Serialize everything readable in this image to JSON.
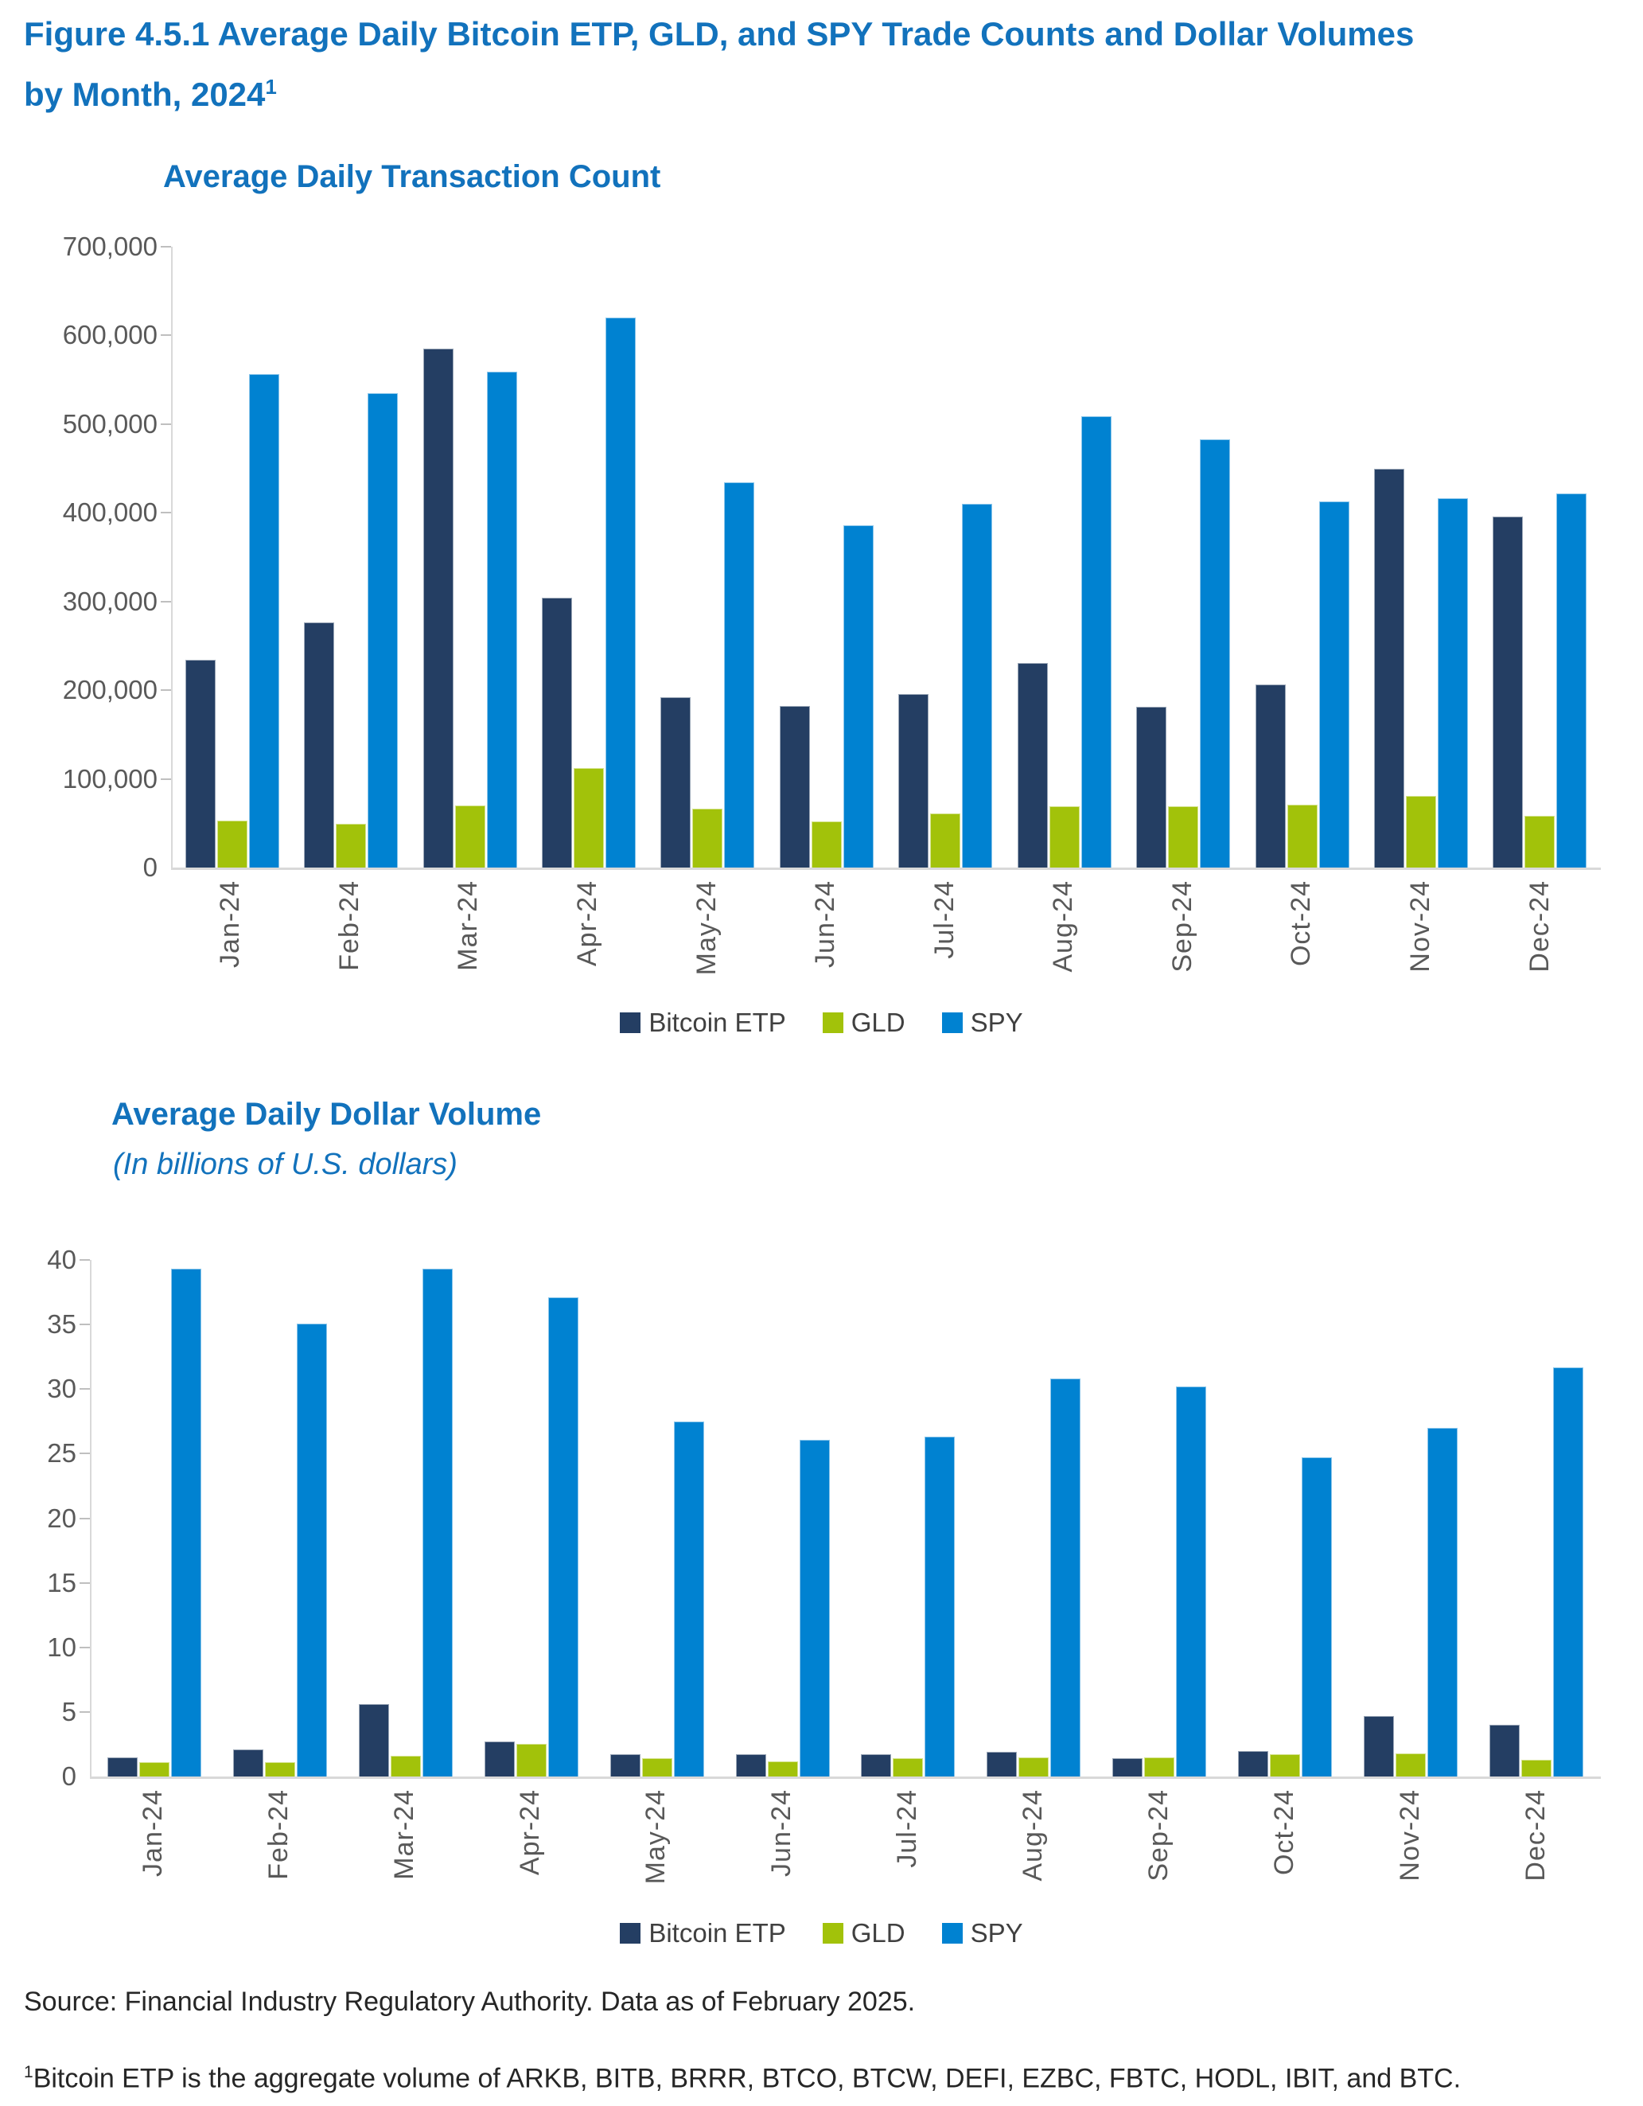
{
  "page": {
    "title_line1": "Figure 4.5.1 Average Daily Bitcoin ETP, GLD, and SPY Trade Counts and Dollar Volumes",
    "title_line2": "by Month, 2024",
    "title_superscript": "1",
    "source": "Source: Financial Industry Regulatory Authority. Data as of February 2025.",
    "footnote_superscript": "1",
    "footnote": "Bitcoin ETP is the aggregate volume of ARKB, BITB, BRRR, BTCO, BTCW, DEFI, EZBC, FBTC, HODL, IBIT, and BTC.",
    "colors": {
      "title_blue": "#1272BC",
      "bitcoin_etp": "#243E63",
      "gld": "#A2C20A",
      "spy": "#0082D1",
      "axis_line": "#D9D9D9",
      "tick_label": "#595959",
      "legend_text": "#404040"
    }
  },
  "chart_data": [
    {
      "type": "bar",
      "title": "Average Daily Transaction Count",
      "subtitle": "",
      "categories": [
        "Jan-24",
        "Feb-24",
        "Mar-24",
        "Apr-24",
        "May-24",
        "Jun-24",
        "Jul-24",
        "Aug-24",
        "Sep-24",
        "Oct-24",
        "Nov-24",
        "Dec-24"
      ],
      "series": [
        {
          "name": "Bitcoin ETP",
          "color": "#243E63",
          "values": [
            234000,
            276000,
            585000,
            304000,
            192000,
            182000,
            196000,
            231000,
            181000,
            206000,
            450000,
            396000
          ]
        },
        {
          "name": "GLD",
          "color": "#A2C20A",
          "values": [
            53000,
            49000,
            70000,
            112000,
            66000,
            52000,
            61000,
            69000,
            69000,
            71000,
            81000,
            58000
          ]
        },
        {
          "name": "SPY",
          "color": "#0082D1",
          "values": [
            556000,
            535000,
            559000,
            620000,
            434000,
            386000,
            410000,
            509000,
            483000,
            413000,
            416000,
            422000
          ]
        }
      ],
      "ylim": [
        0,
        700000
      ],
      "ytick_step": 100000,
      "xlabel": "",
      "ylabel": "",
      "grid": false,
      "legend_position": "bottom"
    },
    {
      "type": "bar",
      "title": "Average Daily Dollar Volume",
      "subtitle": "(In billions of U.S. dollars)",
      "categories": [
        "Jan-24",
        "Feb-24",
        "Mar-24",
        "Apr-24",
        "May-24",
        "Jun-24",
        "Jul-24",
        "Aug-24",
        "Sep-24",
        "Oct-24",
        "Nov-24",
        "Dec-24"
      ],
      "series": [
        {
          "name": "Bitcoin ETP",
          "color": "#243E63",
          "values": [
            1.5,
            2.1,
            5.6,
            2.7,
            1.7,
            1.7,
            1.7,
            1.9,
            1.4,
            2.0,
            4.7,
            4.0
          ]
        },
        {
          "name": "GLD",
          "color": "#A2C20A",
          "values": [
            1.1,
            1.1,
            1.6,
            2.5,
            1.4,
            1.2,
            1.4,
            1.5,
            1.5,
            1.7,
            1.8,
            1.3
          ]
        },
        {
          "name": "SPY",
          "color": "#0082D1",
          "values": [
            39.3,
            35.1,
            39.3,
            37.1,
            27.5,
            26.1,
            26.3,
            30.8,
            30.2,
            24.7,
            27.0,
            31.7
          ]
        }
      ],
      "ylim": [
        0,
        40
      ],
      "ytick_step": 5,
      "xlabel": "",
      "ylabel": "",
      "grid": false,
      "legend_position": "bottom"
    }
  ]
}
